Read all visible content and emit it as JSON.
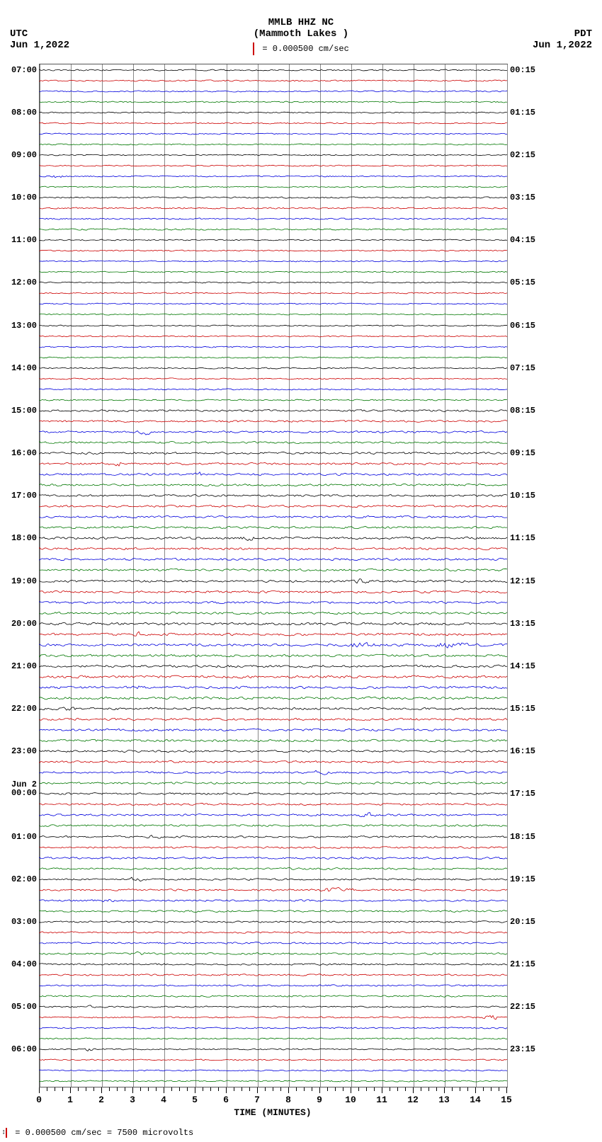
{
  "title_line1": "MMLB HHZ NC",
  "title_line2": "(Mammoth Lakes )",
  "scale_text": " = 0.000500 cm/sec",
  "tz_left_label": "UTC",
  "tz_left_date": "Jun 1,2022",
  "tz_right_label": "PDT",
  "tz_right_date": "Jun 1,2022",
  "xaxis_title": "TIME (MINUTES)",
  "footer_text": " = 0.000500 cm/sec =   7500 microvolts",
  "plot": {
    "x_min": 0,
    "x_max": 15,
    "x_tick_major_step": 1,
    "x_tick_minor_per_major": 4,
    "grid_color": "#888888",
    "border_color": "#555555",
    "trace_colors": [
      "#000000",
      "#cc0000",
      "#0000dd",
      "#007700"
    ],
    "n_hours": 24,
    "lines_per_hour": 4,
    "left_labels": [
      "07:00",
      "08:00",
      "09:00",
      "10:00",
      "11:00",
      "12:00",
      "13:00",
      "14:00",
      "15:00",
      "16:00",
      "17:00",
      "18:00",
      "19:00",
      "20:00",
      "21:00",
      "22:00",
      "23:00",
      "Jun 2\n00:00",
      "01:00",
      "02:00",
      "03:00",
      "04:00",
      "05:00",
      "06:00"
    ],
    "right_labels": [
      "00:15",
      "01:15",
      "02:15",
      "03:15",
      "04:15",
      "05:15",
      "06:15",
      "07:15",
      "08:15",
      "09:15",
      "10:15",
      "11:15",
      "12:15",
      "13:15",
      "14:15",
      "15:15",
      "16:15",
      "17:15",
      "18:15",
      "19:15",
      "20:15",
      "21:15",
      "22:15",
      "23:15"
    ],
    "base_amplitude": 1.2,
    "noise_scale_by_hour": [
      1.0,
      0.9,
      0.9,
      1.1,
      0.9,
      0.9,
      0.9,
      1.0,
      1.4,
      1.5,
      1.5,
      1.6,
      1.6,
      1.8,
      1.8,
      1.7,
      1.5,
      1.4,
      1.4,
      1.3,
      1.3,
      1.2,
      1.1,
      1.0
    ],
    "events": [
      {
        "hour_idx": 2,
        "line": 2,
        "minute": 0.6,
        "amp": 4,
        "width": 0.25
      },
      {
        "hour_idx": 8,
        "line": 2,
        "minute": 3.4,
        "amp": 4,
        "width": 0.3
      },
      {
        "hour_idx": 9,
        "line": 1,
        "minute": 2.6,
        "amp": 3,
        "width": 0.4
      },
      {
        "hour_idx": 9,
        "line": 2,
        "minute": 5.1,
        "amp": 3,
        "width": 0.2
      },
      {
        "hour_idx": 11,
        "line": 0,
        "minute": 6.7,
        "amp": 3,
        "width": 0.3
      },
      {
        "hour_idx": 12,
        "line": 0,
        "minute": 10.3,
        "amp": 3,
        "width": 0.3
      },
      {
        "hour_idx": 13,
        "line": 1,
        "minute": 3.2,
        "amp": 4,
        "width": 0.2
      },
      {
        "hour_idx": 13,
        "line": 2,
        "minute": 13.2,
        "amp": 5,
        "width": 0.6
      },
      {
        "hour_idx": 13,
        "line": 2,
        "minute": 10.3,
        "amp": 3,
        "width": 0.6
      },
      {
        "hour_idx": 14,
        "line": 2,
        "minute": 3.2,
        "amp": 3,
        "width": 0.3
      },
      {
        "hour_idx": 15,
        "line": 0,
        "minute": 1.0,
        "amp": 3,
        "width": 0.3
      },
      {
        "hour_idx": 16,
        "line": 2,
        "minute": 9.0,
        "amp": 3,
        "width": 0.4
      },
      {
        "hour_idx": 17,
        "line": 2,
        "minute": 10.5,
        "amp": 4,
        "width": 0.4
      },
      {
        "hour_idx": 18,
        "line": 0,
        "minute": 3.7,
        "amp": 3,
        "width": 0.3
      },
      {
        "hour_idx": 19,
        "line": 0,
        "minute": 3.1,
        "amp": 4,
        "width": 0.3
      },
      {
        "hour_idx": 19,
        "line": 1,
        "minute": 9.5,
        "amp": 3,
        "width": 0.8
      },
      {
        "hour_idx": 19,
        "line": 2,
        "minute": 2.2,
        "amp": 3,
        "width": 0.2
      },
      {
        "hour_idx": 20,
        "line": 3,
        "minute": 3.3,
        "amp": 4,
        "width": 0.3
      },
      {
        "hour_idx": 22,
        "line": 0,
        "minute": 1.6,
        "amp": 3,
        "width": 0.2
      },
      {
        "hour_idx": 22,
        "line": 1,
        "minute": 14.5,
        "amp": 4,
        "width": 0.3
      },
      {
        "hour_idx": 23,
        "line": 0,
        "minute": 1.6,
        "amp": 3,
        "width": 0.2
      }
    ]
  }
}
